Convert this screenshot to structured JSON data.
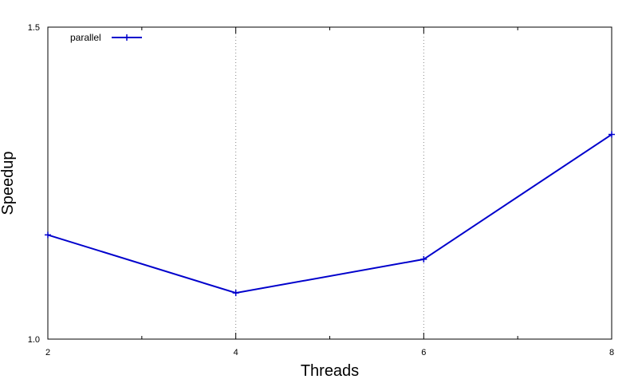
{
  "chart_data": {
    "type": "line",
    "title": "",
    "xlabel": "Threads",
    "ylabel": "Speedup",
    "x": [
      2,
      4,
      6,
      8
    ],
    "xlim": [
      2,
      8
    ],
    "ylim": [
      1.0,
      1.5
    ],
    "x_ticks": [
      "2",
      "4",
      "6",
      "8"
    ],
    "y_ticks": [
      "1.0",
      "1.5"
    ],
    "grid": "vertical dotted at x=4 and x=6",
    "legend_position": "top-left",
    "series": [
      {
        "name": "parallel",
        "color": "#0000cc",
        "marker": "plus",
        "values": [
          1.167,
          1.074,
          1.128,
          1.328
        ]
      }
    ]
  }
}
